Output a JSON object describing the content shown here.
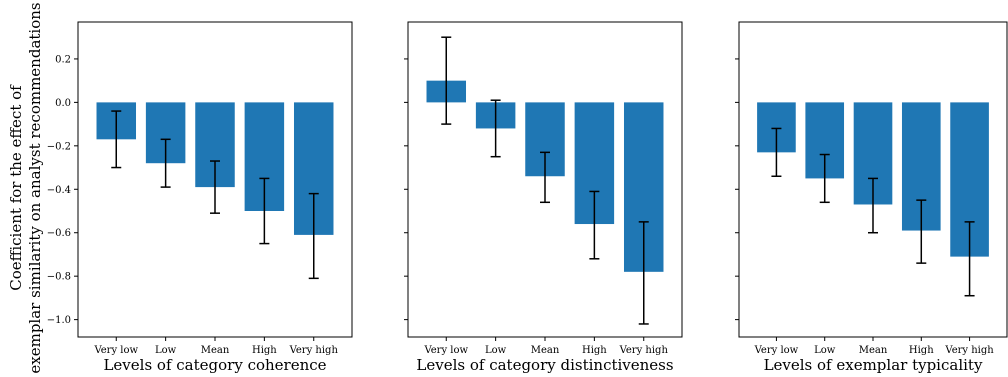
{
  "chart_data": {
    "type": "bar",
    "ylabel_lines": [
      "Coefficient for the effect of",
      "exemplar similarity on analyst recommendations"
    ],
    "ylim": [
      -1.08,
      0.37
    ],
    "yticks": [
      0.2,
      0.0,
      -0.2,
      -0.4,
      -0.6,
      -0.8,
      -1.0
    ],
    "ytick_labels": [
      "0.2",
      "0.0",
      "−0.2",
      "−0.4",
      "−0.6",
      "−0.8",
      "−1.0"
    ],
    "bar_color": "#1f77b4",
    "grid": false,
    "panels": [
      {
        "xlabel": "Levels of category coherence",
        "categories": [
          "Very low",
          "Low",
          "Mean",
          "High",
          "Very high"
        ],
        "values": [
          -0.17,
          -0.28,
          -0.39,
          -0.5,
          -0.61
        ],
        "err_low": [
          -0.3,
          -0.39,
          -0.51,
          -0.65,
          -0.81
        ],
        "err_high": [
          -0.04,
          -0.17,
          -0.27,
          -0.35,
          -0.42
        ]
      },
      {
        "xlabel": "Levels of category distinctiveness",
        "categories": [
          "Very low",
          "Low",
          "Mean",
          "High",
          "Very high"
        ],
        "values": [
          0.1,
          -0.12,
          -0.34,
          -0.56,
          -0.78
        ],
        "err_low": [
          -0.1,
          -0.25,
          -0.46,
          -0.72,
          -1.02
        ],
        "err_high": [
          0.3,
          0.01,
          -0.23,
          -0.41,
          -0.55
        ]
      },
      {
        "xlabel": "Levels of exemplar typicality",
        "categories": [
          "Very low",
          "Low",
          "Mean",
          "High",
          "Very high"
        ],
        "values": [
          -0.23,
          -0.35,
          -0.47,
          -0.59,
          -0.71
        ],
        "err_low": [
          -0.34,
          -0.46,
          -0.6,
          -0.74,
          -0.89
        ],
        "err_high": [
          -0.12,
          -0.24,
          -0.35,
          -0.45,
          -0.55
        ]
      }
    ]
  }
}
